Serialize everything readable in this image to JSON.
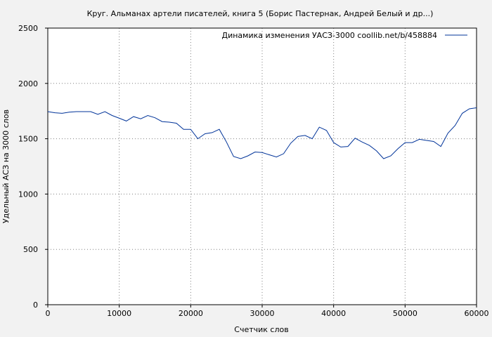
{
  "chart_data": {
    "type": "line",
    "title": "Круг. Альманах артели писателей, книга 5 (Борис Пастернак, Андрей Белый и др...)",
    "xlabel": "Счетчик слов",
    "ylabel": "Удельный АСЗ на 3000 слов",
    "xlim": [
      0,
      60000
    ],
    "ylim": [
      0,
      2500
    ],
    "xticks": [
      0,
      10000,
      20000,
      30000,
      40000,
      50000,
      60000
    ],
    "yticks": [
      0,
      500,
      1000,
      1500,
      2000,
      2500
    ],
    "grid": true,
    "legend_position": "top-right",
    "series": [
      {
        "name": "Динамика изменения УАСЗ-3000  coollib.net/b/458884",
        "color": "#003399",
        "x": [
          0,
          1000,
          2000,
          3000,
          4000,
          5000,
          6000,
          7000,
          8000,
          9000,
          10000,
          11000,
          12000,
          13000,
          14000,
          15000,
          16000,
          17000,
          18000,
          19000,
          20000,
          21000,
          22000,
          23000,
          24000,
          25000,
          26000,
          27000,
          28000,
          29000,
          30000,
          31000,
          32000,
          33000,
          34000,
          35000,
          36000,
          37000,
          38000,
          39000,
          40000,
          41000,
          42000,
          43000,
          44000,
          45000,
          46000,
          47000,
          48000,
          49000,
          50000,
          51000,
          52000,
          53000,
          54000,
          55000,
          56000,
          57000,
          58000,
          59000,
          60000
        ],
        "y": [
          1745,
          1735,
          1730,
          1740,
          1745,
          1745,
          1745,
          1720,
          1745,
          1710,
          1685,
          1660,
          1700,
          1680,
          1710,
          1690,
          1655,
          1650,
          1640,
          1585,
          1585,
          1500,
          1545,
          1555,
          1585,
          1470,
          1340,
          1320,
          1345,
          1380,
          1375,
          1355,
          1335,
          1365,
          1460,
          1520,
          1530,
          1500,
          1605,
          1575,
          1465,
          1425,
          1430,
          1505,
          1470,
          1440,
          1390,
          1320,
          1345,
          1410,
          1465,
          1465,
          1495,
          1485,
          1475,
          1430,
          1550,
          1620,
          1730,
          1770,
          1780
        ]
      }
    ]
  }
}
